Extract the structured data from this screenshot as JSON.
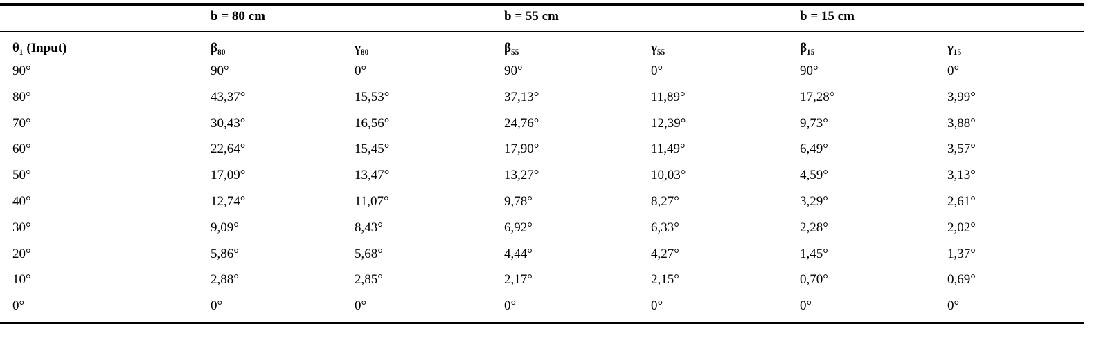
{
  "table": {
    "groups": [
      "b = 80 cm",
      "b = 55 cm",
      "b = 15 cm"
    ],
    "columns": [
      "θ₁ (Input)",
      "β₈₀",
      "γ₈₀",
      "β₅₅",
      "γ₅₅",
      "β₁₅",
      "γ₁₅"
    ],
    "rows": [
      [
        "90°",
        "90°",
        "0°",
        "90°",
        "0°",
        "90°",
        "0°"
      ],
      [
        "80°",
        "43,37°",
        "15,53°",
        "37,13°",
        "11,89°",
        "17,28°",
        "3,99°"
      ],
      [
        "70°",
        "30,43°",
        "16,56°",
        "24,76°",
        "12,39°",
        "9,73°",
        "3,88°"
      ],
      [
        "60°",
        "22,64°",
        "15,45°",
        "17,90°",
        "11,49°",
        "6,49°",
        "3,57°"
      ],
      [
        "50°",
        "17,09°",
        "13,47°",
        "13,27°",
        "10,03°",
        "4,59°",
        "3,13°"
      ],
      [
        "40°",
        "12,74°",
        "11,07°",
        "9,78°",
        "8,27°",
        "3,29°",
        "2,61°"
      ],
      [
        "30°",
        "9,09°",
        "8,43°",
        "6,92°",
        "6,33°",
        "2,28°",
        "2,02°"
      ],
      [
        "20°",
        "5,86°",
        "5,68°",
        "4,44°",
        "4,27°",
        "1,45°",
        "1,37°"
      ],
      [
        "10°",
        "2,88°",
        "2,85°",
        "2,17°",
        "2,15°",
        "0,70°",
        "0,69°"
      ],
      [
        "0°",
        "0°",
        "0°",
        "0°",
        "0°",
        "0°",
        "0°"
      ]
    ]
  }
}
